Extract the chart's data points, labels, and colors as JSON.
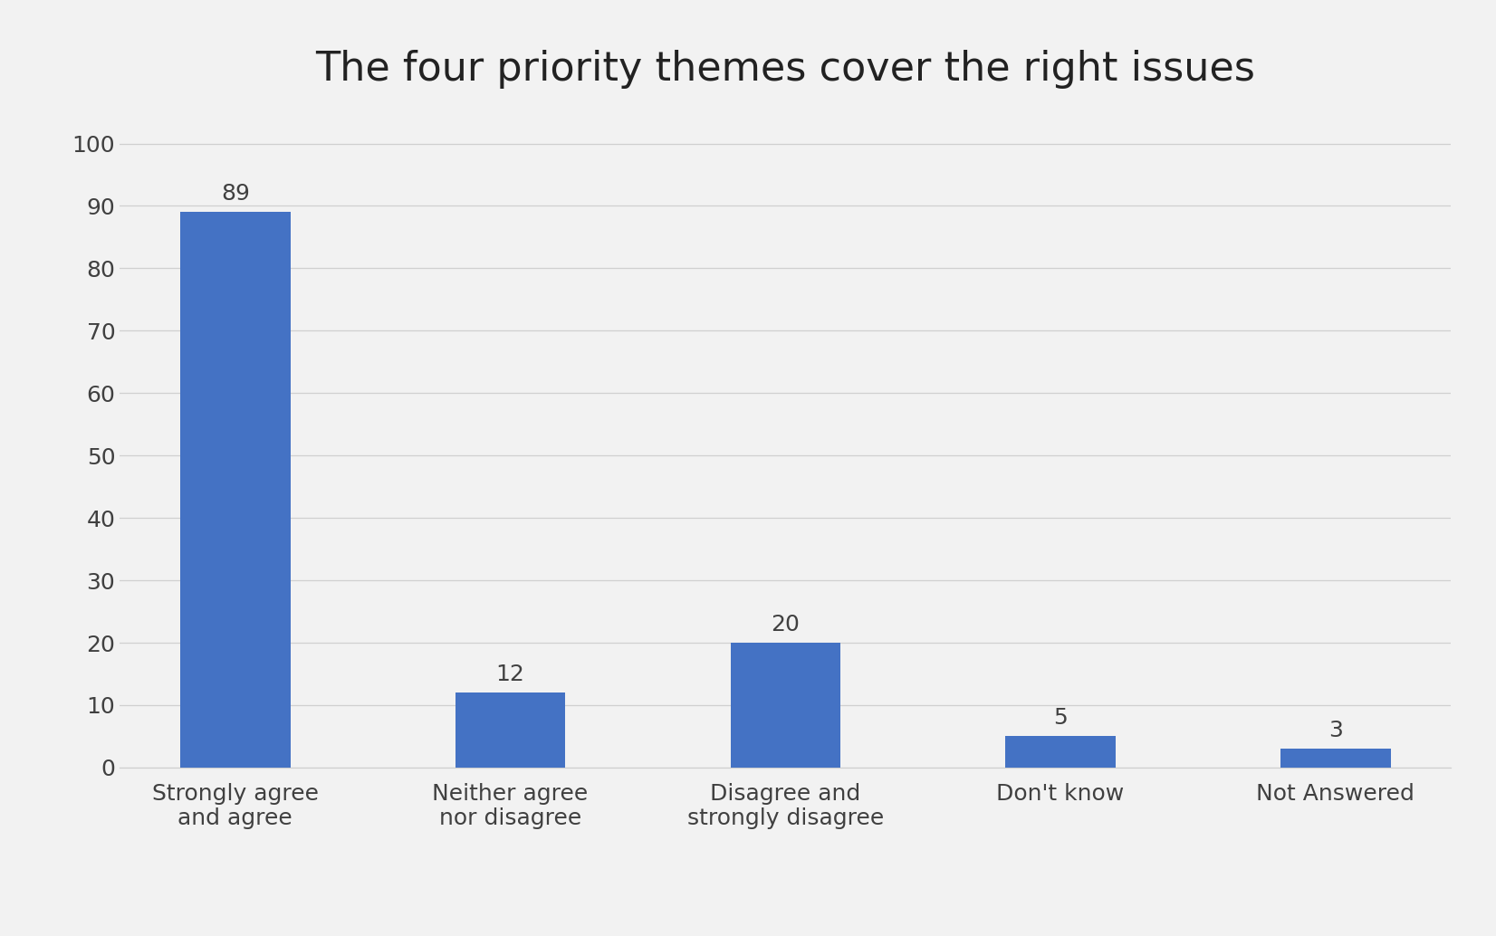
{
  "title": "The four priority themes cover the right issues",
  "categories": [
    "Strongly agree\nand agree",
    "Neither agree\nnor disagree",
    "Disagree and\nstrongly disagree",
    "Don't know",
    "Not Answered"
  ],
  "values": [
    89,
    12,
    20,
    5,
    3
  ],
  "bar_color": "#4472C4",
  "ylim": [
    0,
    105
  ],
  "yticks": [
    0,
    10,
    20,
    30,
    40,
    50,
    60,
    70,
    80,
    90,
    100
  ],
  "title_fontsize": 32,
  "tick_fontsize": 18,
  "bar_label_fontsize": 18,
  "background_color": "#f2f2f2",
  "grid_color": "#d0d0d0",
  "tick_color": "#404040",
  "bar_width": 0.4
}
